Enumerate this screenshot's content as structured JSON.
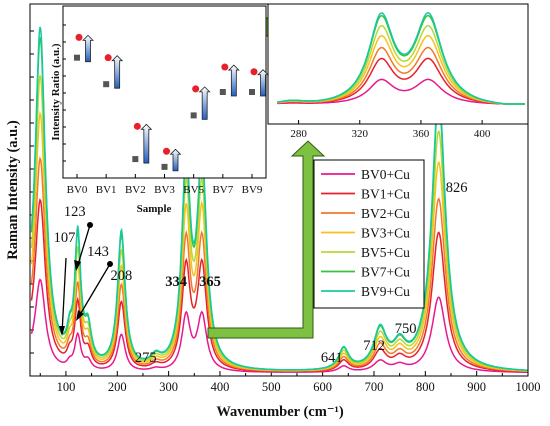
{
  "chart_data": {
    "type": "line",
    "xlabel": "Wavenumber (cm⁻¹)",
    "ylabel": "Raman Intensity (a.u.)",
    "xlim": [
      30,
      1000
    ],
    "xticks": [
      "100",
      "200",
      "300",
      "400",
      "500",
      "600",
      "700",
      "800",
      "900",
      "1000"
    ],
    "series": [
      {
        "name": "BV0+Cu",
        "color": "#e8198e",
        "scale": 0.27
      },
      {
        "name": "BV1+Cu",
        "color": "#e8202c",
        "scale": 0.5
      },
      {
        "name": "BV2+Cu",
        "color": "#f07a2a",
        "scale": 0.62
      },
      {
        "name": "BV3+Cu",
        "color": "#f7c21e",
        "scale": 0.75
      },
      {
        "name": "BV5+Cu",
        "color": "#b6d936",
        "scale": 0.86
      },
      {
        "name": "BV7+Cu",
        "color": "#38c23e",
        "scale": 0.97
      },
      {
        "name": "BV9+Cu",
        "color": "#18c9a0",
        "scale": 1.0
      }
    ],
    "peak_labels": [
      {
        "text": "107",
        "x": 107,
        "bold": false
      },
      {
        "text": "123",
        "x": 123,
        "bold": false
      },
      {
        "text": "143",
        "x": 143,
        "bold": false
      },
      {
        "text": "208",
        "x": 208,
        "bold": false
      },
      {
        "text": "275",
        "x": 275,
        "bold": false
      },
      {
        "text": "334",
        "x": 334,
        "bold": true
      },
      {
        "text": "365",
        "x": 365,
        "bold": true
      },
      {
        "text": "641",
        "x": 641,
        "bold": false
      },
      {
        "text": "712",
        "x": 712,
        "bold": false
      },
      {
        "text": "750",
        "x": 750,
        "bold": false
      },
      {
        "text": "826",
        "x": 826,
        "bold": false
      }
    ],
    "zoom_inset": {
      "xlim": [
        260,
        430
      ],
      "xticks": [
        "280",
        "320",
        "360",
        "400"
      ]
    },
    "ratio_inset": {
      "type": "scatter",
      "ylabel": "Intensity Ratio (a.u.)",
      "xlabel": "Sample",
      "categories": [
        "BV0",
        "BV1",
        "BV2",
        "BV3",
        "BV5",
        "BV7",
        "BV9"
      ],
      "red_circle": [
        0.85,
        0.72,
        0.28,
        0.12,
        0.52,
        0.66,
        0.63
      ],
      "gray_square": [
        0.72,
        0.55,
        0.07,
        0.02,
        0.35,
        0.5,
        0.5
      ],
      "colors": {
        "circle": "#e8202c",
        "square": "#555555"
      }
    }
  }
}
